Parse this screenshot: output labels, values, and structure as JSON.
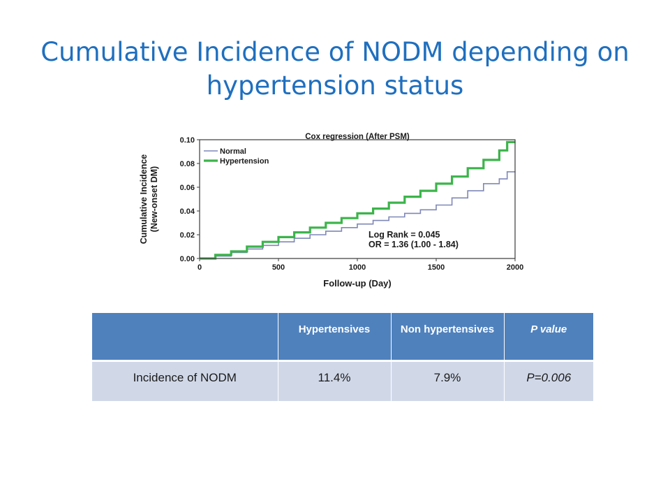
{
  "slide": {
    "title": "Cumulative Incidence of NODM depending on hypertension status"
  },
  "chart_data": {
    "type": "line",
    "title": "Cox regression (After PSM)",
    "xlabel": "Follow-up (Day)",
    "ylabel": "Cumulative Incidence (New-onset DM)",
    "ylabel_lines": [
      "Cumulative Incidence",
      "(New-onset DM)"
    ],
    "xlim": [
      0,
      2000
    ],
    "ylim": [
      0,
      0.1
    ],
    "xticks": [
      0,
      500,
      1000,
      1500,
      2000
    ],
    "xtick_labels": [
      "0",
      "500",
      "1000",
      "1500",
      "2000"
    ],
    "yticks": [
      0,
      0.02,
      0.04,
      0.06,
      0.08,
      0.1
    ],
    "ytick_labels": [
      "0.00",
      "0.02",
      "0.04",
      "0.06",
      "0.08",
      "0.10"
    ],
    "legend_placement": "top-left",
    "annotations": [
      "Log Rank = 0.045",
      "OR = 1.36 (1.00 - 1.84)"
    ],
    "series": [
      {
        "name": "Normal",
        "color": "#7f87b8",
        "x": [
          0,
          100,
          200,
          300,
          400,
          500,
          600,
          700,
          800,
          900,
          1000,
          1100,
          1200,
          1300,
          1400,
          1500,
          1600,
          1700,
          1800,
          1900,
          1950,
          2000
        ],
        "y": [
          0,
          0.002,
          0.005,
          0.008,
          0.011,
          0.014,
          0.017,
          0.02,
          0.023,
          0.026,
          0.029,
          0.032,
          0.035,
          0.038,
          0.041,
          0.045,
          0.051,
          0.057,
          0.063,
          0.067,
          0.073,
          0.073
        ]
      },
      {
        "name": "Hypertension",
        "color": "#3cb44b",
        "x": [
          0,
          100,
          200,
          300,
          400,
          500,
          600,
          700,
          800,
          900,
          1000,
          1100,
          1200,
          1300,
          1400,
          1500,
          1600,
          1700,
          1800,
          1900,
          1950,
          2000
        ],
        "y": [
          0,
          0.003,
          0.006,
          0.01,
          0.014,
          0.018,
          0.022,
          0.026,
          0.03,
          0.034,
          0.038,
          0.042,
          0.047,
          0.052,
          0.057,
          0.063,
          0.069,
          0.076,
          0.083,
          0.091,
          0.098,
          0.098
        ]
      }
    ]
  },
  "table": {
    "headers": [
      "",
      "Hypertensives",
      "Non hypertensives",
      "P value"
    ],
    "rows": [
      [
        "Incidence of NODM",
        "11.4%",
        "7.9%",
        "P=0.006"
      ]
    ]
  }
}
